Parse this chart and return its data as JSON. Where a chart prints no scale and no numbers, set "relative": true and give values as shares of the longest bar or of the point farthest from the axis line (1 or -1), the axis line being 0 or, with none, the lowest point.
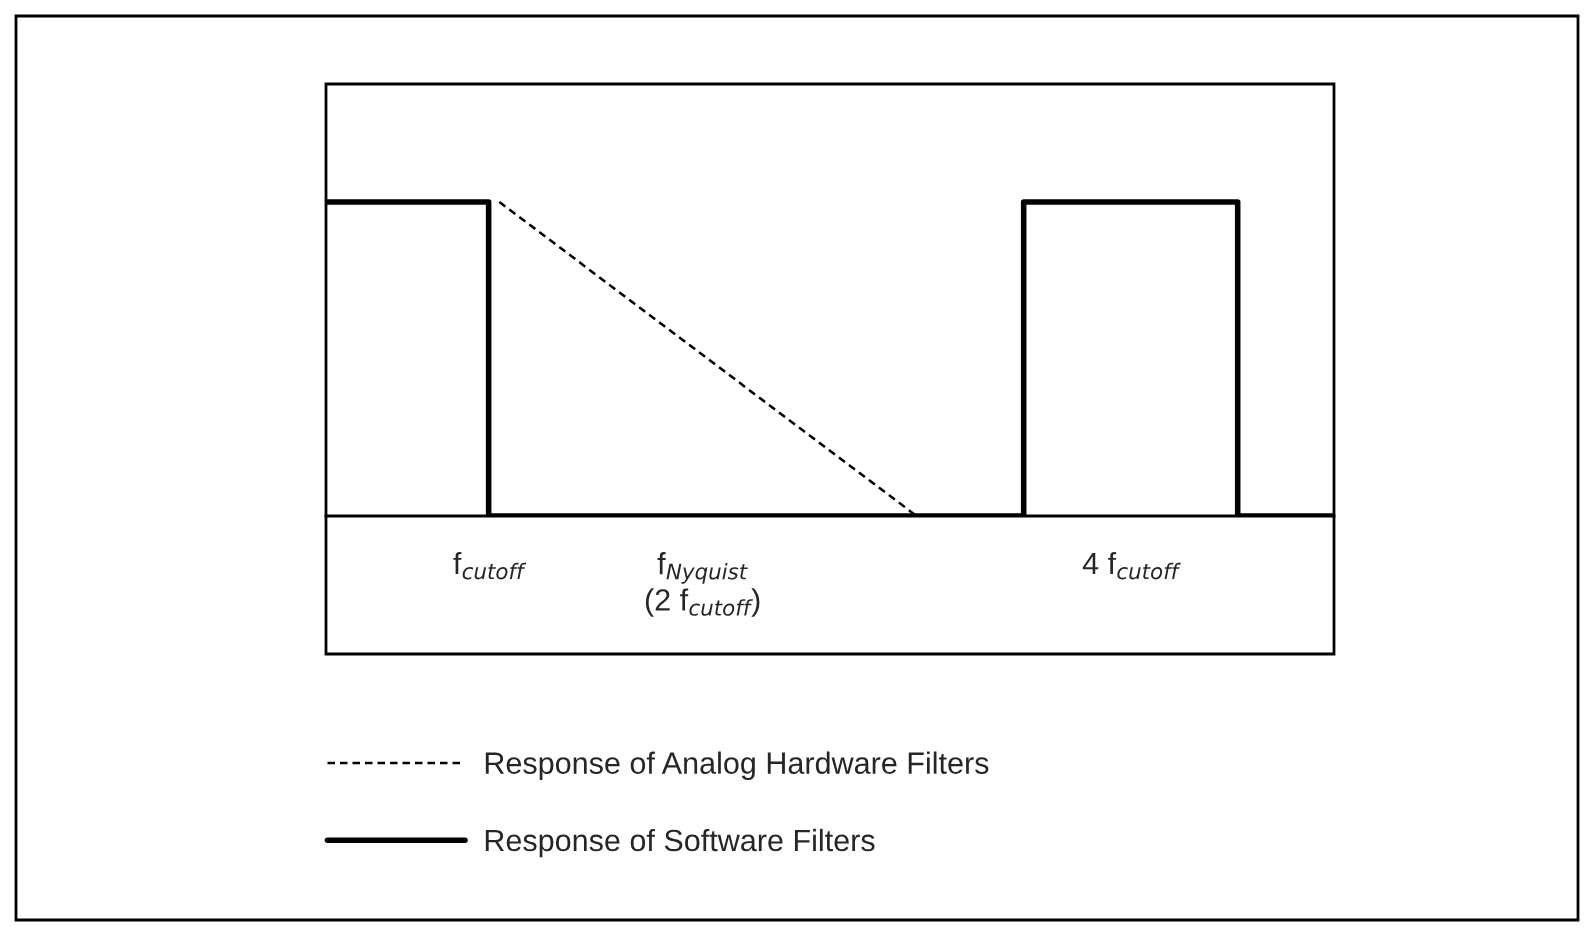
{
  "chart_data": {
    "type": "line",
    "relative": true,
    "xlim": [
      0.24,
      4.95
    ],
    "xticks": [
      {
        "value": 1,
        "label": "f$_{cutoff}$"
      },
      {
        "value": 2,
        "label": "f$_{Nyquist}$\n(2 f$_{cutoff}$)"
      },
      {
        "value": 4,
        "label": "4 f$_{cutoff}$"
      }
    ],
    "series": [
      {
        "name": "Response of Analog Hardware Filters",
        "color": "#000000",
        "line_style": "dashed",
        "x": [
          1.05,
          3.0
        ],
        "values": [
          1,
          0
        ]
      },
      {
        "name": "Response of Software Filters",
        "color": "#000000",
        "line_style": "solid",
        "x": [
          0.24,
          1,
          1,
          3.5,
          3.5,
          4.5,
          4.5,
          4.95
        ],
        "values": [
          1,
          1,
          0,
          0,
          1,
          1,
          0,
          0
        ]
      }
    ],
    "legend": "bottom",
    "grid": false,
    "marker": "none"
  }
}
